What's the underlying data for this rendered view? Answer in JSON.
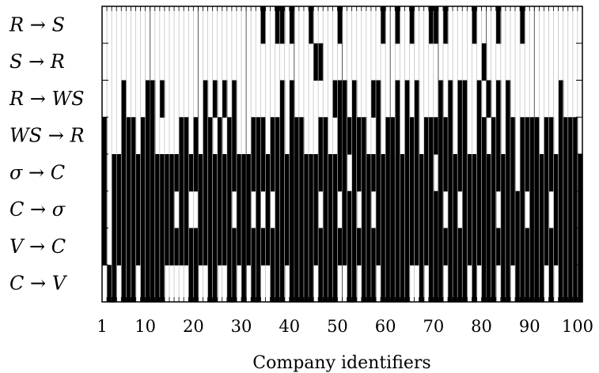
{
  "chart_data": {
    "type": "heatmap",
    "xlabel": "Company identifiers",
    "x_ticks": [
      "1",
      "10",
      "20",
      "30",
      "40",
      "50",
      "60",
      "70",
      "80",
      "90",
      "100"
    ],
    "x_tick_values": [
      1,
      10,
      20,
      30,
      40,
      50,
      60,
      70,
      80,
      90,
      100
    ],
    "xlim": [
      1,
      100
    ],
    "rows": [
      {
        "label": "R → S",
        "cells": [
          34,
          37,
          38,
          40,
          44,
          50,
          59,
          62,
          65,
          69,
          70,
          72,
          78,
          83,
          88
        ]
      },
      {
        "label": "S → R",
        "cells": [
          45,
          46,
          80
        ]
      },
      {
        "label": "R → WS",
        "cells": [
          5,
          10,
          11,
          13,
          22,
          24,
          26,
          28,
          38,
          40,
          49,
          50,
          51,
          53,
          57,
          58,
          62,
          64,
          66,
          71,
          73,
          75,
          76,
          79,
          81,
          83,
          85,
          96
        ]
      },
      {
        "label": "WS → R",
        "cells": [
          1,
          5,
          6,
          7,
          9,
          10,
          11,
          17,
          18,
          20,
          22,
          23,
          25,
          27,
          28,
          32,
          33,
          34,
          36,
          37,
          38,
          40,
          41,
          42,
          46,
          47,
          50,
          51,
          52,
          53,
          54,
          55,
          58,
          60,
          61,
          62,
          64,
          65,
          66,
          68,
          69,
          70,
          71,
          72,
          73,
          75,
          76,
          79,
          80,
          82,
          83,
          85,
          86,
          88,
          89,
          90,
          91,
          93,
          94,
          96,
          97,
          98,
          99
        ]
      },
      {
        "label": "σ → C",
        "cells": [
          1,
          3,
          4,
          5,
          6,
          7,
          8,
          9,
          10,
          11,
          12,
          13,
          14,
          15,
          16,
          17,
          18,
          19,
          20,
          21,
          22,
          23,
          24,
          25,
          26,
          27,
          28,
          29,
          30,
          31,
          32,
          33,
          34,
          35,
          36,
          37,
          38,
          39,
          40,
          41,
          42,
          43,
          44,
          45,
          46,
          47,
          48,
          49,
          50,
          51,
          53,
          54,
          55,
          56,
          57,
          58,
          59,
          60,
          61,
          62,
          63,
          64,
          65,
          66,
          67,
          68,
          69,
          71,
          72,
          73,
          74,
          75,
          76,
          77,
          78,
          79,
          80,
          81,
          82,
          83,
          84,
          85,
          86,
          88,
          89,
          90,
          91,
          92,
          93,
          94,
          95,
          96,
          97,
          98,
          99,
          100
        ]
      },
      {
        "label": "C → σ",
        "cells": [
          1,
          3,
          4,
          5,
          6,
          7,
          8,
          9,
          10,
          11,
          12,
          13,
          14,
          15,
          17,
          18,
          21,
          22,
          23,
          24,
          25,
          26,
          27,
          29,
          30,
          31,
          33,
          35,
          37,
          38,
          39,
          40,
          41,
          42,
          43,
          44,
          45,
          47,
          48,
          49,
          51,
          52,
          53,
          55,
          56,
          58,
          59,
          60,
          61,
          62,
          63,
          64,
          65,
          66,
          67,
          68,
          69,
          70,
          71,
          73,
          74,
          76,
          77,
          78,
          79,
          80,
          81,
          82,
          84,
          85,
          86,
          87,
          88,
          90,
          91,
          92,
          93,
          95,
          96,
          97,
          98,
          99,
          100
        ]
      },
      {
        "label": "V → C",
        "cells": [
          1,
          3,
          4,
          5,
          6,
          7,
          8,
          9,
          10,
          11,
          12,
          13,
          14,
          15,
          16,
          17,
          18,
          19,
          20,
          21,
          22,
          23,
          24,
          25,
          26,
          27,
          28,
          29,
          30,
          31,
          32,
          33,
          34,
          35,
          36,
          37,
          38,
          39,
          40,
          41,
          42,
          43,
          44,
          45,
          46,
          47,
          48,
          49,
          50,
          51,
          52,
          53,
          54,
          55,
          56,
          57,
          58,
          59,
          60,
          61,
          62,
          63,
          64,
          65,
          66,
          67,
          68,
          69,
          70,
          71,
          72,
          73,
          74,
          75,
          76,
          77,
          78,
          79,
          80,
          81,
          82,
          83,
          84,
          85,
          86,
          87,
          88,
          89,
          90,
          91,
          92,
          93,
          94,
          95,
          96,
          97,
          98,
          99,
          100
        ]
      },
      {
        "label": "C → V",
        "cells": [
          2,
          3,
          5,
          6,
          7,
          9,
          10,
          11,
          12,
          13,
          19,
          20,
          23,
          24,
          27,
          28,
          30,
          32,
          33,
          36,
          37,
          38,
          40,
          41,
          42,
          43,
          44,
          46,
          47,
          48,
          49,
          52,
          53,
          55,
          56,
          57,
          59,
          60,
          61,
          62,
          63,
          64,
          67,
          69,
          70,
          71,
          73,
          74,
          75,
          76,
          78,
          80,
          81,
          82,
          84,
          85,
          87,
          88,
          89,
          90,
          91,
          92,
          94,
          96,
          97,
          98,
          99,
          100
        ]
      }
    ],
    "colors": {
      "filled": "#000000",
      "empty": "#ffffff",
      "grid": "#bbbbbb",
      "frame": "#000000"
    }
  }
}
